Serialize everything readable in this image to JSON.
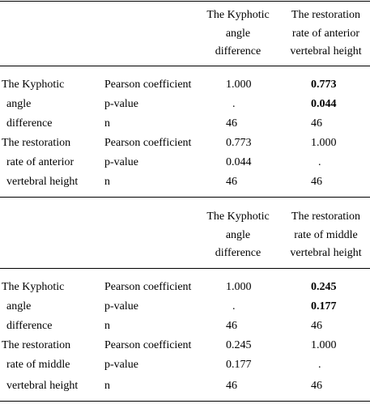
{
  "panels": [
    {
      "header": {
        "col1": [
          "The Kyphotic",
          "angle",
          "difference"
        ],
        "col2": [
          "The restoration",
          "rate of anterior",
          "vertebral height"
        ]
      },
      "groups": [
        {
          "label": [
            "The Kyphotic",
            "angle",
            "difference"
          ],
          "rows": [
            {
              "stat": "Pearson coefficient",
              "c1": "1.000",
              "c2": "0.773",
              "c2_bold": true
            },
            {
              "stat": "p-value",
              "c1": ".",
              "c2": "0.044",
              "c2_bold": true
            },
            {
              "stat": "n",
              "c1": "46",
              "c2": "46",
              "c2_bold": false
            }
          ]
        },
        {
          "label": [
            "The restoration",
            "rate of anterior",
            "vertebral height"
          ],
          "rows": [
            {
              "stat": "Pearson coefficient",
              "c1": "0.773",
              "c2": "1.000",
              "c2_bold": false
            },
            {
              "stat": "p-value",
              "c1": "0.044",
              "c2": ".",
              "c2_bold": false
            },
            {
              "stat": "n",
              "c1": "46",
              "c2": "46",
              "c2_bold": false
            }
          ]
        }
      ]
    },
    {
      "header": {
        "col1": [
          "The Kyphotic",
          "angle",
          "difference"
        ],
        "col2": [
          "The restoration",
          "rate of middle",
          "vertebral height"
        ]
      },
      "groups": [
        {
          "label": [
            "The Kyphotic",
            "angle",
            "difference"
          ],
          "rows": [
            {
              "stat": "Pearson coefficient",
              "c1": "1.000",
              "c2": "0.245",
              "c2_bold": true
            },
            {
              "stat": "p-value",
              "c1": ".",
              "c2": "0.177",
              "c2_bold": true
            },
            {
              "stat": "n",
              "c1": "46",
              "c2": "46",
              "c2_bold": false
            }
          ]
        },
        {
          "label": [
            "The restoration",
            "rate of middle",
            "vertebral height"
          ],
          "rows": [
            {
              "stat": "Pearson coefficient",
              "c1": "0.245",
              "c2": "1.000",
              "c2_bold": false
            },
            {
              "stat": "p-value",
              "c1": "0.177",
              "c2": ".",
              "c2_bold": false
            },
            {
              "stat": "n",
              "c1": "46",
              "c2": "46",
              "c2_bold": false
            }
          ]
        }
      ]
    }
  ]
}
